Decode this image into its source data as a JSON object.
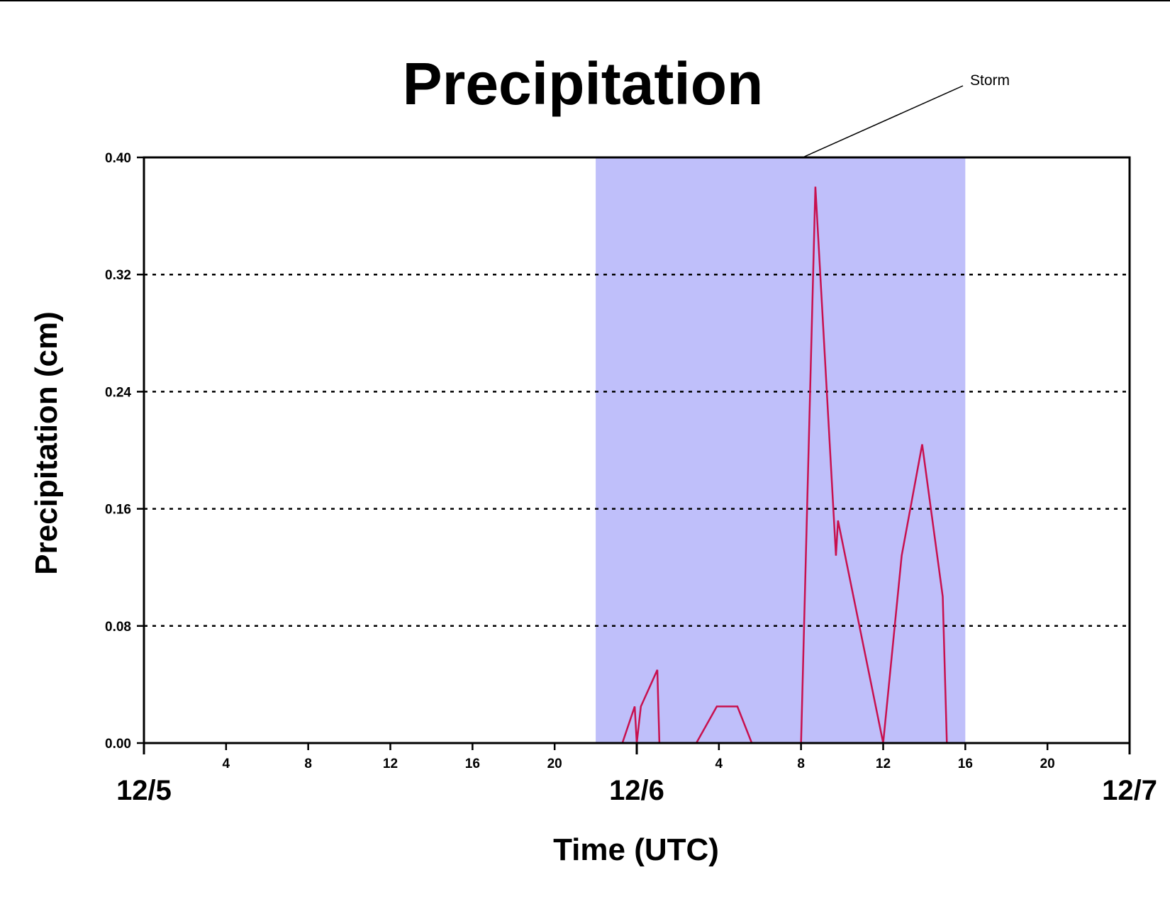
{
  "chart_data": {
    "type": "line",
    "title": "Precipitation",
    "xlabel": "Time (UTC)",
    "ylabel": "Precipitation (cm)",
    "ylim": [
      0,
      0.4
    ],
    "xlim_hours": [
      0,
      48
    ],
    "grid": "dashed horizontal",
    "y_ticks": [
      "0.00",
      "0.08",
      "0.16",
      "0.24",
      "0.32",
      "0.40"
    ],
    "x_hour_ticks": [
      {
        "h": 4,
        "label": "4"
      },
      {
        "h": 8,
        "label": "8"
      },
      {
        "h": 12,
        "label": "12"
      },
      {
        "h": 16,
        "label": "16"
      },
      {
        "h": 20,
        "label": "20"
      },
      {
        "h": 28,
        "label": "4"
      },
      {
        "h": 32,
        "label": "8"
      },
      {
        "h": 36,
        "label": "12"
      },
      {
        "h": 40,
        "label": "16"
      },
      {
        "h": 44,
        "label": "20"
      }
    ],
    "day_labels": [
      {
        "h": 0,
        "label": "12/5"
      },
      {
        "h": 24,
        "label": "12/6"
      },
      {
        "h": 48,
        "label": "12/7"
      }
    ],
    "shaded_region": {
      "label": "Storm",
      "start_h": 22,
      "end_h": 40,
      "color": "#bfbffa"
    },
    "series": [
      {
        "color": "#c8104e",
        "x": [
          0,
          23.3,
          23.9,
          24.0,
          24.2,
          25.0,
          25.1,
          26.9,
          27.9,
          28.9,
          29.6,
          31.9,
          32.0,
          32.7,
          33.7,
          33.8,
          36.0,
          36.9,
          37.9,
          38.9,
          39.1,
          48
        ],
        "y": [
          0,
          0,
          0.025,
          0,
          0.025,
          0.05,
          0,
          0,
          0.025,
          0.025,
          0,
          0,
          0,
          0.38,
          0.128,
          0.152,
          0,
          0.128,
          0.204,
          0.1,
          0,
          0
        ]
      }
    ]
  }
}
